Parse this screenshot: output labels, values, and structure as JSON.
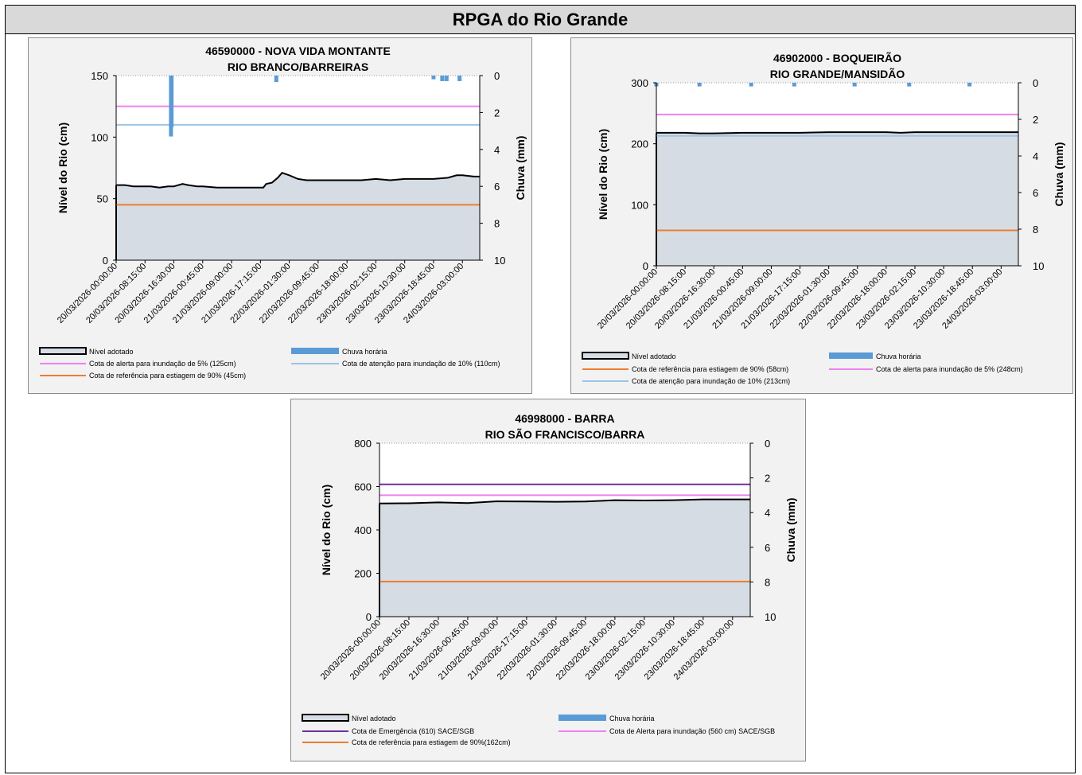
{
  "page": {
    "title": "RPGA do Rio Grande"
  },
  "colors": {
    "level_fill": "#d6dce4",
    "level_line": "#000000",
    "rain": "#5b9bd5",
    "alert_5": "#ee82ee",
    "attention_10": "#9dc3e6",
    "drought_90": "#ed7d31",
    "emergency": "#7030a0"
  },
  "chart_data": [
    {
      "type": "area",
      "title": "46590000 - NOVA VIDA  MONTANTE",
      "subtitle": "RIO BRANCO/BARREIRAS",
      "ylabel": "Nível do Rio  (cm)",
      "y2label": "Chuva (mm)",
      "ylim": [
        0,
        150
      ],
      "yticks": [
        0,
        50,
        100,
        150
      ],
      "y2lim": [
        0,
        10
      ],
      "y2ticks": [
        0,
        2,
        4,
        6,
        8,
        10
      ],
      "y2_inverted": true,
      "x_categories": [
        "20/03/2026-00:00:00",
        "20/03/2026-08:15:00",
        "20/03/2026-16:30:00",
        "21/03/2026-00:45:00",
        "21/03/2026-09:00:00",
        "21/03/2026-17:15:00",
        "22/03/2026-01:30:00",
        "22/03/2026-09:45:00",
        "22/03/2026-18:00:00",
        "23/03/2026-02:15:00",
        "23/03/2026-10:30:00",
        "23/03/2026-18:45:00",
        "24/03/2026-03:00:00"
      ],
      "level": {
        "name": "Nível adotado",
        "points": [
          [
            0,
            61
          ],
          [
            0.3,
            61
          ],
          [
            0.6,
            60
          ],
          [
            1.2,
            60
          ],
          [
            1.5,
            59
          ],
          [
            1.8,
            60
          ],
          [
            2.0,
            60
          ],
          [
            2.3,
            62
          ],
          [
            2.5,
            61
          ],
          [
            2.8,
            60
          ],
          [
            3.0,
            60
          ],
          [
            3.5,
            59
          ],
          [
            4.0,
            59
          ],
          [
            4.5,
            59
          ],
          [
            5.0,
            59
          ],
          [
            5.1,
            59
          ],
          [
            5.2,
            62
          ],
          [
            5.4,
            63
          ],
          [
            5.6,
            67
          ],
          [
            5.75,
            71
          ],
          [
            6.0,
            69
          ],
          [
            6.3,
            66
          ],
          [
            6.6,
            65
          ],
          [
            7.0,
            65
          ],
          [
            7.5,
            65
          ],
          [
            8.0,
            65
          ],
          [
            8.5,
            65
          ],
          [
            9.0,
            66
          ],
          [
            9.5,
            65
          ],
          [
            10.0,
            66
          ],
          [
            10.5,
            66
          ],
          [
            11.0,
            66
          ],
          [
            11.5,
            67
          ],
          [
            11.8,
            69
          ],
          [
            12.0,
            69
          ],
          [
            12.4,
            68
          ],
          [
            12.6,
            68
          ]
        ]
      },
      "rain": {
        "name": "Chuva horária",
        "bars": [
          [
            1.9,
            3.3
          ],
          [
            1.92,
            2.8
          ],
          [
            5.55,
            0.35
          ],
          [
            11.0,
            0.2
          ],
          [
            11.3,
            0.3
          ],
          [
            11.45,
            0.3
          ],
          [
            11.9,
            0.3
          ]
        ]
      },
      "lines": [
        {
          "name": "Cota de alerta para inundação de 5% (125cm)",
          "value": 125,
          "color": "#ee82ee"
        },
        {
          "name": "Cota de atenção para inundação de 10% (110cm)",
          "value": 110,
          "color": "#9dc3e6"
        },
        {
          "name": "Cota de referência para estiagem de 90% (45cm)",
          "value": 45,
          "color": "#ed7d31"
        }
      ]
    },
    {
      "type": "area",
      "title": "46902000 - BOQUEIRÃO",
      "subtitle": "RIO GRANDE/MANSIDÃO",
      "ylabel": "Nível do Rio  (cm)",
      "y2label": "Chuva (mm)",
      "ylim": [
        0,
        300
      ],
      "yticks": [
        0,
        100,
        200,
        300
      ],
      "y2lim": [
        0,
        10
      ],
      "y2ticks": [
        0,
        2,
        4,
        6,
        8,
        10
      ],
      "y2_inverted": true,
      "x_categories": [
        "20/03/2026-00:00:00",
        "20/03/2026-08:15:00",
        "20/03/2026-16:30:00",
        "21/03/2026-00:45:00",
        "21/03/2026-09:00:00",
        "21/03/2026-17:15:00",
        "22/03/2026-01:30:00",
        "22/03/2026-09:45:00",
        "22/03/2026-18:00:00",
        "23/03/2026-02:15:00",
        "23/03/2026-10:30:00",
        "23/03/2026-18:45:00",
        "24/03/2026-03:00:00"
      ],
      "level": {
        "name": "Nível adotado",
        "points": [
          [
            0,
            218
          ],
          [
            1,
            218
          ],
          [
            1.5,
            217
          ],
          [
            2,
            217
          ],
          [
            3,
            218
          ],
          [
            4,
            218
          ],
          [
            5,
            218
          ],
          [
            6,
            219
          ],
          [
            7,
            219
          ],
          [
            8,
            219
          ],
          [
            8.5,
            218
          ],
          [
            9,
            219
          ],
          [
            10,
            219
          ],
          [
            11,
            219
          ],
          [
            12,
            219
          ],
          [
            12.6,
            219
          ]
        ]
      },
      "rain": {
        "name": "Chuva horária",
        "bars": [
          [
            0,
            0.2
          ],
          [
            1.5,
            0.2
          ],
          [
            3.3,
            0.2
          ],
          [
            4.8,
            0.2
          ],
          [
            6.9,
            0.2
          ],
          [
            8.8,
            0.2
          ],
          [
            10.9,
            0.2
          ]
        ]
      },
      "lines": [
        {
          "name": "Cota de referência para estiagem de 90% (58cm)",
          "value": 58,
          "color": "#ed7d31"
        },
        {
          "name": "Cota de alerta para inundação de 5% (248cm)",
          "value": 248,
          "color": "#ee82ee"
        },
        {
          "name": "Cota de atenção para inundação de 10% (213cm)",
          "value": 213,
          "color": "#9dc3e6"
        }
      ]
    },
    {
      "type": "area",
      "title": "46998000 - BARRA",
      "subtitle": "RIO SÃO FRANCISCO/BARRA",
      "ylabel": "Nível do Rio  (cm)",
      "y2label": "Chuva (mm)",
      "ylim": [
        0,
        800
      ],
      "yticks": [
        0,
        200,
        400,
        600,
        800
      ],
      "y2lim": [
        0,
        10
      ],
      "y2ticks": [
        0,
        2,
        4,
        6,
        8,
        10
      ],
      "y2_inverted": true,
      "x_categories": [
        "20/03/2026-00:00:00",
        "20/03/2026-08:15:00",
        "20/03/2026-16:30:00",
        "21/03/2026-00:45:00",
        "21/03/2026-09:00:00",
        "21/03/2026-17:15:00",
        "22/03/2026-01:30:00",
        "22/03/2026-09:45:00",
        "22/03/2026-18:00:00",
        "23/03/2026-02:15:00",
        "23/03/2026-10:30:00",
        "23/03/2026-18:45:00",
        "24/03/2026-03:00:00"
      ],
      "level": {
        "name": "Nível adotado",
        "points": [
          [
            0,
            522
          ],
          [
            1,
            523
          ],
          [
            2,
            527
          ],
          [
            3,
            524
          ],
          [
            4,
            532
          ],
          [
            5,
            531
          ],
          [
            6,
            530
          ],
          [
            7,
            531
          ],
          [
            8,
            537
          ],
          [
            9,
            536
          ],
          [
            10,
            537
          ],
          [
            11,
            541
          ],
          [
            12,
            541
          ],
          [
            12.6,
            541
          ]
        ]
      },
      "rain": {
        "name": "Chuva horária",
        "bars": []
      },
      "lines": [
        {
          "name": "Cota de Emergência (610) SACE/SGB",
          "value": 610,
          "color": "#7030a0"
        },
        {
          "name": "Cota de Alerta para inundação (560 cm) SACE/SGB",
          "value": 560,
          "color": "#ee82ee"
        },
        {
          "name": "Cota de referência para estiagem de 90%(162cm)",
          "value": 162,
          "color": "#ed7d31"
        }
      ]
    }
  ]
}
